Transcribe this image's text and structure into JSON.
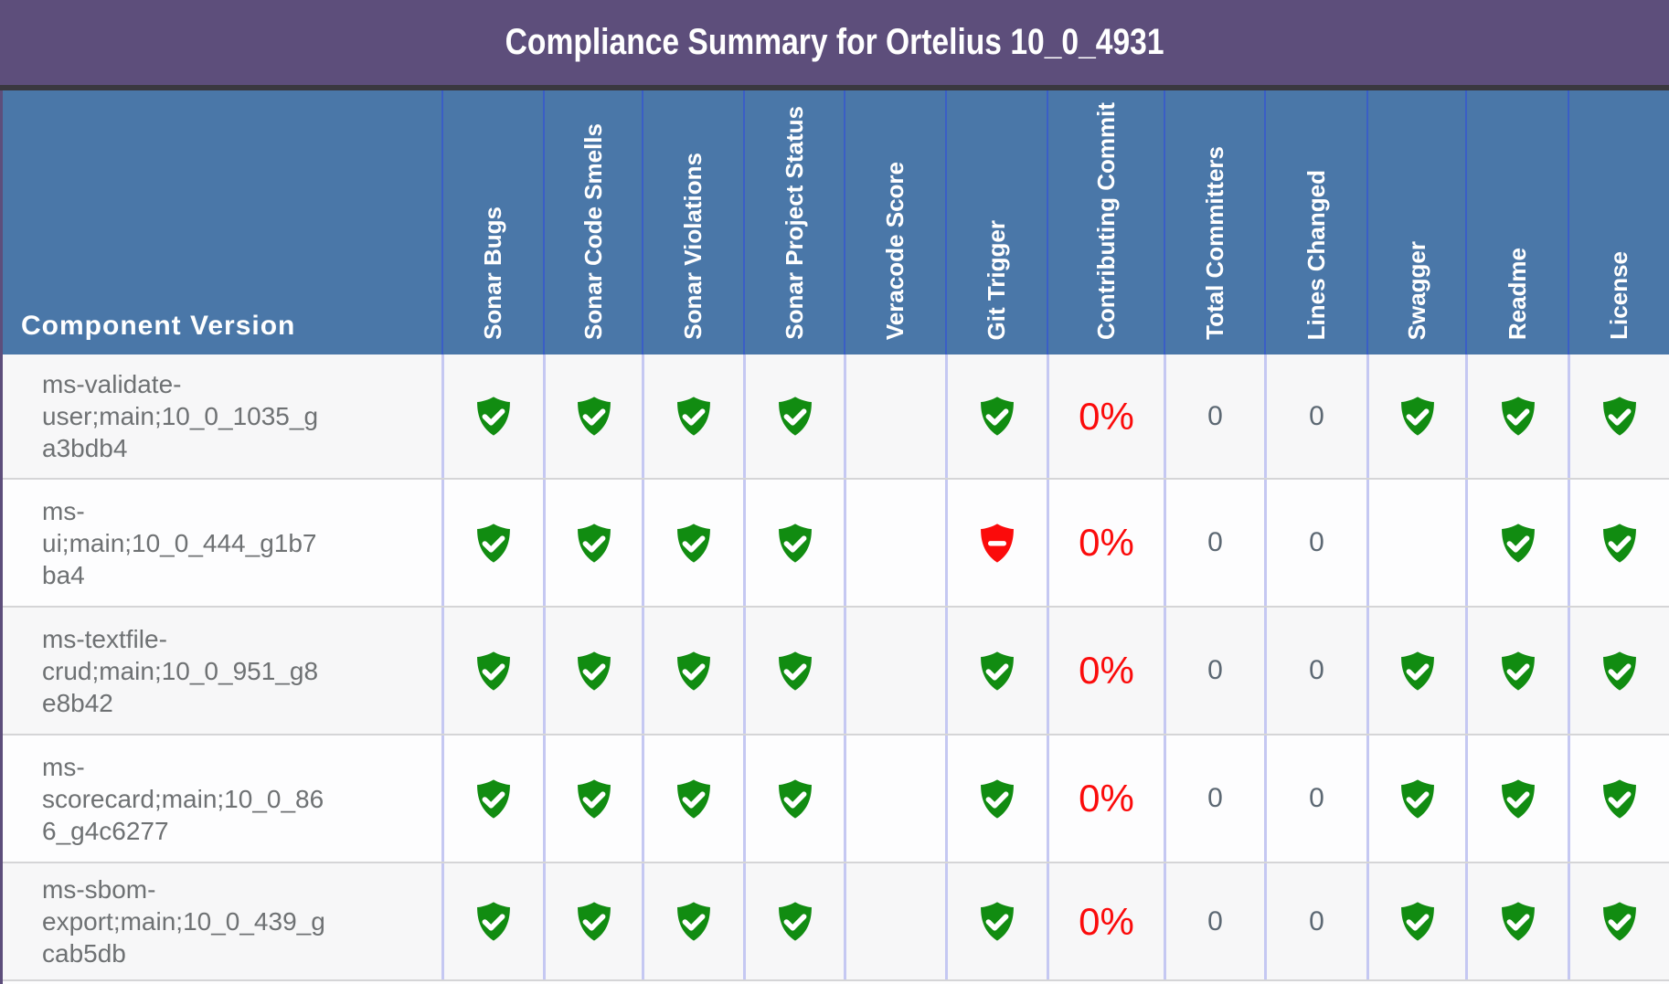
{
  "title": "Compliance Summary for Ortelius 10_0_4931",
  "table": {
    "first_column_header": "Component Version",
    "columns": [
      "Sonar Bugs",
      "Sonar Code Smells",
      "Sonar Violations",
      "Sonar Project Status",
      "Veracode Score",
      "Git Trigger",
      "Contributing Commit",
      "Total Committers",
      "Lines Changed",
      "Swagger",
      "Readme",
      "License"
    ],
    "rows": [
      {
        "name": "ms-validate-user;main;10_0_1035_ga3bdb4",
        "cells": [
          "check",
          "check",
          "check",
          "check",
          "",
          "check",
          "0%",
          "0",
          "0",
          "check",
          "check",
          "check"
        ]
      },
      {
        "name": "ms-ui;main;10_0_444_g1b7ba4",
        "cells": [
          "check",
          "check",
          "check",
          "check",
          "",
          "minus",
          "0%",
          "0",
          "0",
          "",
          "check",
          "check"
        ]
      },
      {
        "name": "ms-textfile-crud;main;10_0_951_g8e8b42",
        "cells": [
          "check",
          "check",
          "check",
          "check",
          "",
          "check",
          "0%",
          "0",
          "0",
          "check",
          "check",
          "check"
        ]
      },
      {
        "name": "ms-scorecard;main;10_0_866_g4c6277",
        "cells": [
          "check",
          "check",
          "check",
          "check",
          "",
          "check",
          "0%",
          "0",
          "0",
          "check",
          "check",
          "check"
        ]
      },
      {
        "name": "ms-sbom-export;main;10_0_439_gcab5db",
        "cells": [
          "check",
          "check",
          "check",
          "check",
          "",
          "check",
          "0%",
          "0",
          "0",
          "check",
          "check",
          "check"
        ]
      }
    ]
  },
  "icons": {
    "check": "shield-check-icon",
    "minus": "shield-minus-icon"
  },
  "colors": {
    "title_purple": "#5d4e7b",
    "header_blue": "#4a77a8",
    "shield_green": "#118c11",
    "shield_red": "#fb0b0b",
    "percent_red": "#fb0b0b"
  }
}
